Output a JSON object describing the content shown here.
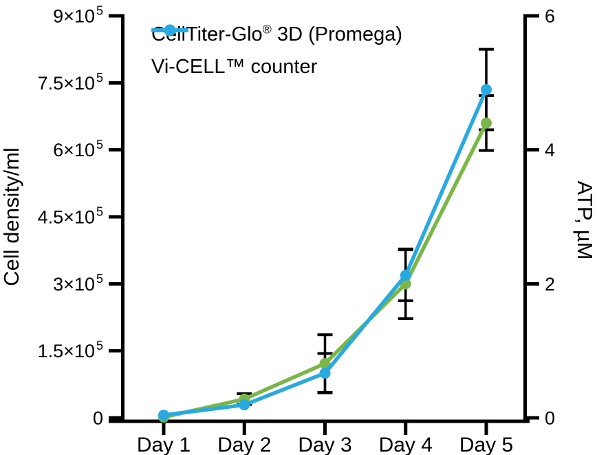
{
  "figure": {
    "background": "#ffffff",
    "text_color": "#000000"
  },
  "chart_data": {
    "type": "line",
    "grid": false,
    "legend_position": "top-left-inside",
    "axis_color": "#000000",
    "error_bar_color": "#000000",
    "categories": [
      "Day 1",
      "Day 2",
      "Day 3",
      "Day 4",
      "Day 5"
    ],
    "left_axis": {
      "label": "Cell density/ml",
      "min": 0,
      "max": 900000,
      "ticks": [
        {
          "v": 0,
          "label": "0",
          "exp": ""
        },
        {
          "v": 150000,
          "label": "1.5×10",
          "exp": "5"
        },
        {
          "v": 300000,
          "label": "3×10",
          "exp": "5"
        },
        {
          "v": 450000,
          "label": "4.5×10",
          "exp": "5"
        },
        {
          "v": 600000,
          "label": "6×10",
          "exp": "5"
        },
        {
          "v": 750000,
          "label": "7.5×10",
          "exp": "5"
        },
        {
          "v": 900000,
          "label": "9×10",
          "exp": "5"
        }
      ]
    },
    "right_axis": {
      "label": "ATP, µM",
      "min": 0,
      "max": 6,
      "ticks": [
        {
          "v": 0,
          "label": "0",
          "exp": ""
        },
        {
          "v": 2,
          "label": "2",
          "exp": ""
        },
        {
          "v": 4,
          "label": "4",
          "exp": ""
        },
        {
          "v": 6,
          "label": "6",
          "exp": ""
        }
      ]
    },
    "series": [
      {
        "name": "CellTiter-Glo® 3D (Promega)",
        "label_pre": "CellTiter-Glo",
        "label_sup": "®",
        "label_post": " 3D (Promega)",
        "color": "#7ab648",
        "axis": "right",
        "units": "µM ATP",
        "marker": "circle",
        "values": [
          0.01,
          0.28,
          0.81,
          2.0,
          4.4
        ],
        "errors": [
          0,
          0.08,
          0.43,
          0.52,
          0.41
        ]
      },
      {
        "name": "Vi-CELL™ counter",
        "label_pre": "Vi-CELL™ counter",
        "label_sup": "",
        "label_post": "",
        "color": "#29a9e0",
        "axis": "left",
        "units": "cells/ml",
        "marker": "circle",
        "values": [
          6000,
          29000,
          100000,
          319000,
          735000
        ],
        "errors": [
          0,
          0,
          44000,
          57000,
          90000
        ]
      }
    ]
  }
}
